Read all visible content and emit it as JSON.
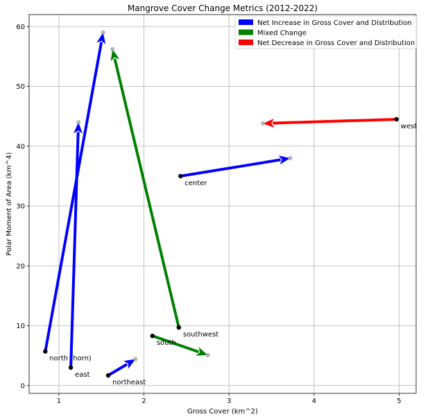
{
  "chart_data": {
    "type": "scatter",
    "title": "Mangrove Cover Change Metrics (2012-2022)",
    "xlabel": "Gross Cover (km^2)",
    "ylabel": "Polar Moment of Area (km^4)",
    "xlim": [
      0.65,
      5.2
    ],
    "ylim": [
      -1.3,
      62
    ],
    "xticks": [
      1,
      2,
      3,
      4,
      5
    ],
    "yticks": [
      0,
      10,
      20,
      30,
      40,
      50,
      60
    ],
    "grid": true,
    "legend_position": "top-right",
    "legend": [
      {
        "label": "Net Increase in Gross Cover and Distribution",
        "color": "#0000ff"
      },
      {
        "label": "Mixed Change",
        "color": "#008000"
      },
      {
        "label": "Net Decrease in Gross Cover and Distribution",
        "color": "#ff0000"
      }
    ],
    "arrows": [
      {
        "label": "north (horn)",
        "category": "Net Increase in Gross Cover and Distribution",
        "x_start": 0.84,
        "y_start": 5.7,
        "x_end": 1.52,
        "y_end": 59.0
      },
      {
        "label": "east",
        "category": "Net Increase in Gross Cover and Distribution",
        "x_start": 1.14,
        "y_start": 3.0,
        "x_end": 1.23,
        "y_end": 44.0
      },
      {
        "label": "northeast",
        "category": "Net Increase in Gross Cover and Distribution",
        "x_start": 1.58,
        "y_start": 1.7,
        "x_end": 1.9,
        "y_end": 4.4
      },
      {
        "label": "south",
        "category": "Mixed Change",
        "x_start": 2.1,
        "y_start": 8.3,
        "x_end": 2.75,
        "y_end": 5.1
      },
      {
        "label": "southwest",
        "category": "Mixed Change",
        "x_start": 2.41,
        "y_start": 9.7,
        "x_end": 1.63,
        "y_end": 56.2
      },
      {
        "label": "center",
        "category": "Net Increase in Gross Cover and Distribution",
        "x_start": 2.43,
        "y_start": 35.0,
        "x_end": 3.72,
        "y_end": 38.0
      },
      {
        "label": "west",
        "category": "Net Decrease in Gross Cover and Distribution",
        "x_start": 4.97,
        "y_start": 44.5,
        "x_end": 3.4,
        "y_end": 43.8
      }
    ]
  }
}
